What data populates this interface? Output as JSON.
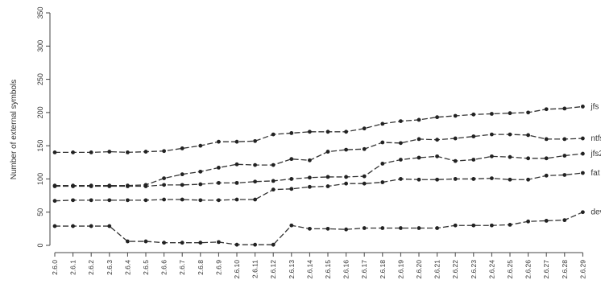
{
  "chart_data": {
    "type": "line",
    "ylabel": "Number of external symbols",
    "xlabel": "",
    "title": "",
    "ylim": [
      0,
      350
    ],
    "yticks": [
      0,
      50,
      100,
      150,
      200,
      250,
      300,
      350
    ],
    "grid": false,
    "legend": "labels at line ends (right)",
    "x": [
      "2.6.0",
      "2.6.1",
      "2.6.2",
      "2.6.3",
      "2.6.4",
      "2.6.5",
      "2.6.6",
      "2.6.7",
      "2.6.8",
      "2.6.9",
      "2.6.10",
      "2.6.11",
      "2.6.12",
      "2.6.13",
      "2.6.14",
      "2.6.15",
      "2.6.16",
      "2.6.17",
      "2.6.18",
      "2.6.19",
      "2.6.20",
      "2.6.21",
      "2.6.22",
      "2.6.23",
      "2.6.24",
      "2.6.25",
      "2.6.26",
      "2.6.27",
      "2.6.28",
      "2.6.29"
    ],
    "series": [
      {
        "name": "jfs",
        "values": [
          140,
          140,
          140,
          141,
          140,
          141,
          142,
          146,
          150,
          156,
          156,
          157,
          167,
          169,
          171,
          171,
          171,
          176,
          183,
          187,
          189,
          193,
          195,
          197,
          198,
          199,
          200,
          205,
          206,
          209
        ]
      },
      {
        "name": "ntfs",
        "values": [
          90,
          90,
          90,
          90,
          90,
          91,
          101,
          107,
          111,
          117,
          122,
          121,
          121,
          130,
          128,
          141,
          144,
          145,
          155,
          154,
          160,
          159,
          161,
          164,
          167,
          167,
          166,
          160,
          160,
          161
        ]
      },
      {
        "name": "jfs2",
        "values": [
          89,
          89,
          89,
          89,
          89,
          89,
          91,
          91,
          92,
          94,
          94,
          96,
          97,
          100,
          102,
          103,
          103,
          104,
          123,
          129,
          132,
          134,
          127,
          129,
          134,
          133,
          131,
          131,
          135,
          138
        ]
      },
      {
        "name": "fat",
        "values": [
          67,
          68,
          68,
          68,
          68,
          68,
          69,
          69,
          68,
          68,
          69,
          69,
          84,
          85,
          88,
          89,
          93,
          93,
          95,
          100,
          99,
          99,
          100,
          100,
          101,
          99,
          99,
          105,
          106,
          109
        ]
      },
      {
        "name": "devpts",
        "values": [
          29,
          29,
          29,
          29,
          6,
          6,
          4,
          4,
          4,
          5,
          1,
          1,
          1,
          30,
          25,
          25,
          24,
          26,
          26,
          26,
          26,
          26,
          30,
          30,
          30,
          31,
          36,
          37,
          38,
          50
        ]
      }
    ]
  }
}
